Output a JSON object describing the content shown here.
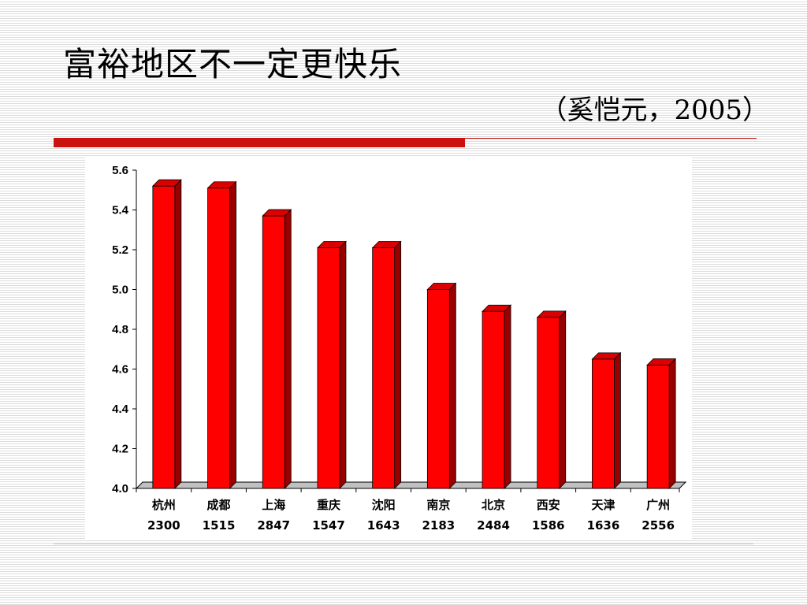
{
  "slide": {
    "title": "富裕地区不一定更快乐",
    "citation": "（奚恺元，2005）"
  },
  "chart_data": {
    "type": "bar",
    "categories": [
      [
        "杭州",
        "2300"
      ],
      [
        "成都",
        "1515"
      ],
      [
        "上海",
        "2847"
      ],
      [
        "重庆",
        "1547"
      ],
      [
        "沈阳",
        "1643"
      ],
      [
        "南京",
        "2183"
      ],
      [
        "北京",
        "2484"
      ],
      [
        "西安",
        "1586"
      ],
      [
        "天津",
        "1636"
      ],
      [
        "广州",
        "2556"
      ]
    ],
    "values": [
      5.52,
      5.51,
      5.37,
      5.21,
      5.21,
      5.0,
      4.89,
      4.86,
      4.65,
      4.62
    ],
    "ylim": [
      4.0,
      5.6
    ],
    "yticks": [
      "4.0",
      "4.2",
      "4.4",
      "4.6",
      "4.8",
      "5.0",
      "5.2",
      "5.4",
      "5.6"
    ],
    "bar_color": "#ff0000",
    "bar_side_color": "#990000",
    "bar_top_color": "#dd0000",
    "title": "",
    "xlabel": "",
    "ylabel": "",
    "grid": false,
    "legend": "none"
  }
}
